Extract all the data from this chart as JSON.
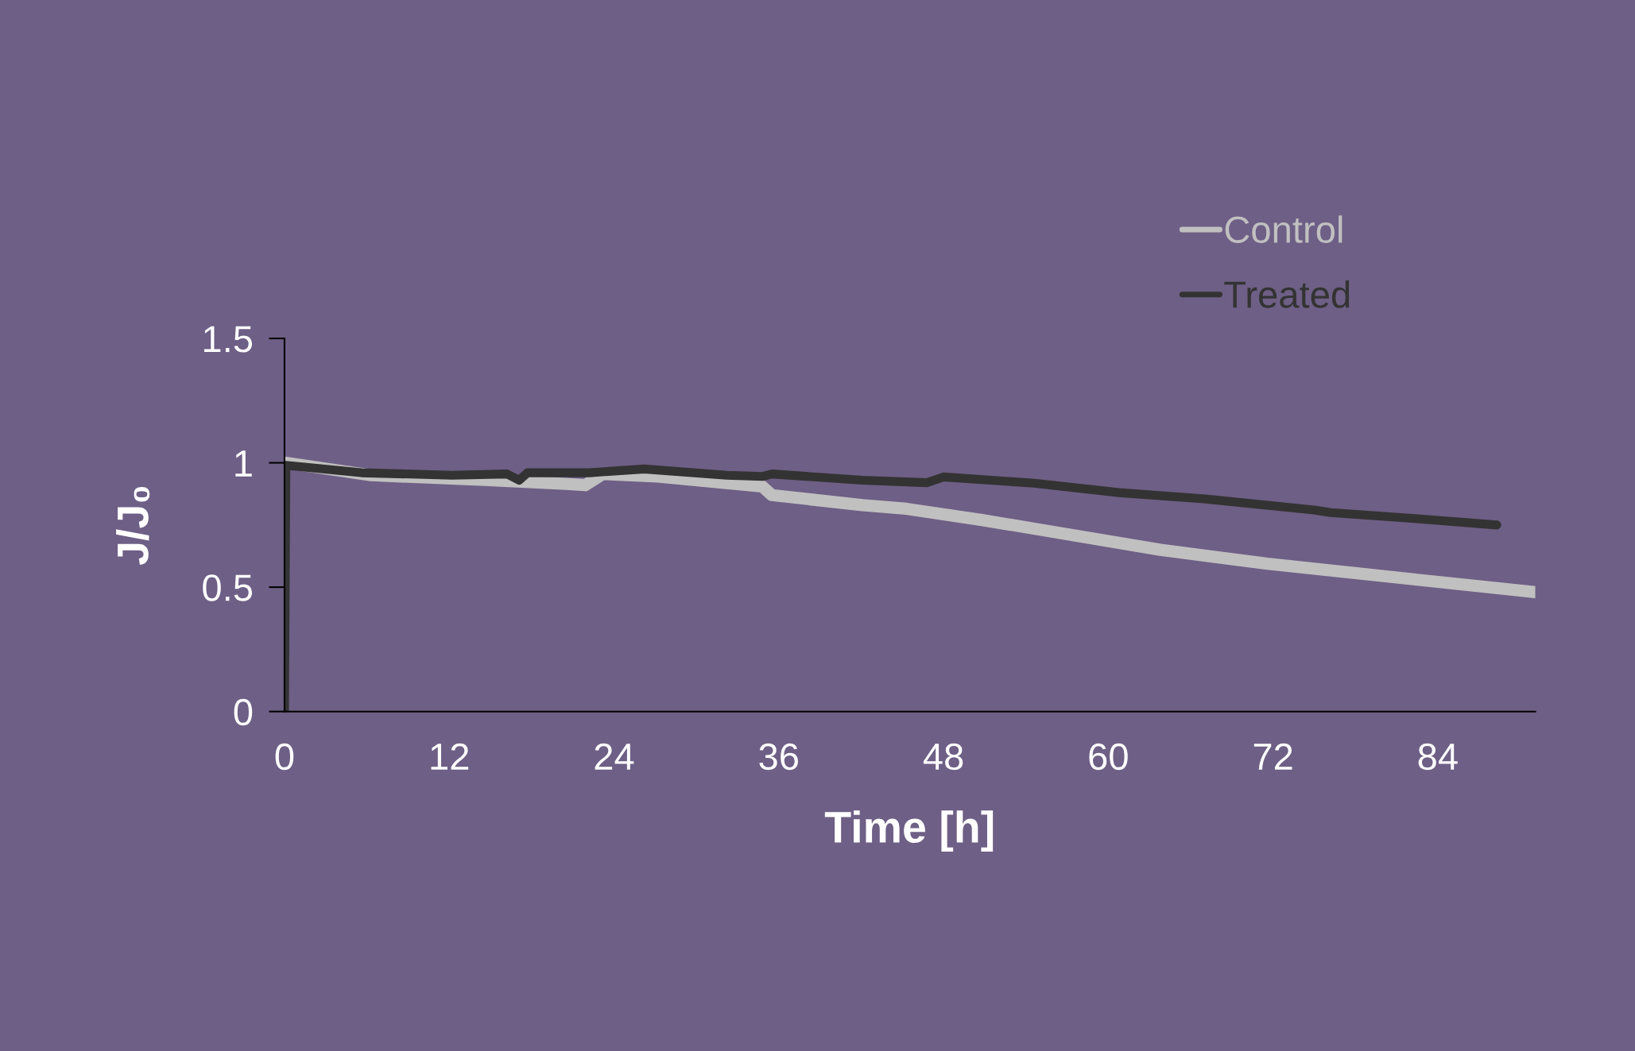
{
  "chart_data": {
    "type": "line",
    "xlabel": "Time [h]",
    "ylabel": "J/J₀",
    "xlim": [
      0,
      91.1
    ],
    "xticks": [
      0,
      12,
      24,
      36,
      48,
      60,
      72,
      84
    ],
    "ylim": [
      0,
      1.5
    ],
    "yticks": [
      0,
      0.5,
      1,
      1.5
    ],
    "grid": false,
    "legend": "top right",
    "marker": "none",
    "line_style": "solid",
    "series": [
      {
        "name": "Control",
        "color": "#c0c0c0",
        "x": [
          0.1,
          6.3,
          14.9,
          20.5,
          21.9,
          23.2,
          27.2,
          34.8,
          35.5,
          42.1,
          45.3,
          50.8,
          54.6,
          63.8,
          71.6,
          82.5,
          91.1
        ],
        "values": [
          1.0,
          0.95,
          0.93,
          0.915,
          0.91,
          0.955,
          0.945,
          0.905,
          0.87,
          0.83,
          0.815,
          0.77,
          0.735,
          0.65,
          0.594,
          0.53,
          0.48
        ]
      },
      {
        "name": "Treated",
        "color": "#333333",
        "x": [
          0,
          0.1,
          5.6,
          12.2,
          16.2,
          17.1,
          17.7,
          22.2,
          26.2,
          32.2,
          34.8,
          35.5,
          42.1,
          46.8,
          48.0,
          54.6,
          60.8,
          67.0,
          75.0,
          76.2,
          82.5,
          88.3
        ],
        "values": [
          0,
          0.99,
          0.96,
          0.95,
          0.955,
          0.93,
          0.96,
          0.96,
          0.975,
          0.95,
          0.945,
          0.955,
          0.93,
          0.92,
          0.943,
          0.918,
          0.88,
          0.855,
          0.81,
          0.8,
          0.775,
          0.75
        ]
      }
    ]
  }
}
